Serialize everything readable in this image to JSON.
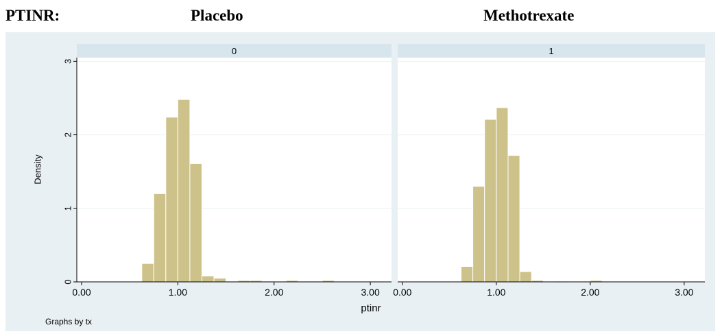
{
  "header": {
    "label": "PTINR:",
    "left_title": "Placebo",
    "right_title": "Methotrexate"
  },
  "colors": {
    "bar_fill": "#cdc28a",
    "bar_stroke": "#ffffff",
    "panel_strip": "#d7e5ec",
    "outer_background": "#e9f0f3",
    "plot_background": "#ffffff",
    "grid": "#eaf1f4"
  },
  "chart_data": {
    "type": "bar",
    "subtype": "histogram",
    "xlabel": "ptinr",
    "ylabel": "Density",
    "note": "Graphs by tx",
    "xlim": [
      -0.05,
      3.22
    ],
    "ylim": [
      0,
      3.05
    ],
    "xticks": [
      0,
      1,
      2,
      3
    ],
    "xtick_labels": [
      "0.00",
      "1.00",
      "2.00",
      "3.00"
    ],
    "yticks": [
      0,
      1,
      2,
      3
    ],
    "ytick_labels": [
      "0",
      "1",
      "2",
      "3"
    ],
    "grid": true,
    "bin_width": 0.125,
    "panels": [
      {
        "strip_label": "0",
        "bins": [
          {
            "x0": 0.625,
            "density": 0.25
          },
          {
            "x0": 0.75,
            "density": 1.2
          },
          {
            "x0": 0.875,
            "density": 2.24
          },
          {
            "x0": 1.0,
            "density": 2.48
          },
          {
            "x0": 1.125,
            "density": 1.61
          },
          {
            "x0": 1.25,
            "density": 0.08
          },
          {
            "x0": 1.375,
            "density": 0.05
          },
          {
            "x0": 1.5,
            "density": 0.01
          },
          {
            "x0": 1.625,
            "density": 0.02
          },
          {
            "x0": 1.75,
            "density": 0.02
          },
          {
            "x0": 1.875,
            "density": 0.01
          },
          {
            "x0": 2.125,
            "density": 0.02
          },
          {
            "x0": 2.25,
            "density": 0.01
          },
          {
            "x0": 2.375,
            "density": 0.01
          },
          {
            "x0": 2.5,
            "density": 0.02
          },
          {
            "x0": 3.0,
            "density": 0.01
          }
        ]
      },
      {
        "strip_label": "1",
        "bins": [
          {
            "x0": 0.625,
            "density": 0.21
          },
          {
            "x0": 0.75,
            "density": 1.3
          },
          {
            "x0": 0.875,
            "density": 2.21
          },
          {
            "x0": 1.0,
            "density": 2.37
          },
          {
            "x0": 1.125,
            "density": 1.72
          },
          {
            "x0": 1.25,
            "density": 0.14
          },
          {
            "x0": 1.375,
            "density": 0.02
          },
          {
            "x0": 1.625,
            "density": 0.01
          },
          {
            "x0": 2.0,
            "density": 0.02
          }
        ]
      }
    ]
  }
}
